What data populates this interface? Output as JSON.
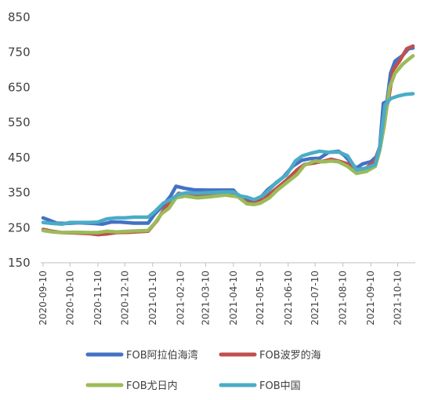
{
  "chart_data": {
    "type": "line",
    "title": "",
    "xlabel": "",
    "ylabel": "",
    "ylim": [
      150,
      850
    ],
    "y_ticks": [
      "850",
      "750",
      "650",
      "550",
      "450",
      "350",
      "250",
      "150"
    ],
    "x_ticks": [
      "2020-09-10",
      "2020-10-10",
      "2020-11-10",
      "2020-12-10",
      "2021-01-10",
      "2021-02-10",
      "2021-03-10",
      "2021-04-10",
      "2021-05-10",
      "2021-06-10",
      "2021-07-10",
      "2021-08-10",
      "2021-09-10",
      "2021-10-10"
    ],
    "x_range": [
      "2020-09-10",
      "2021-10-27"
    ],
    "grid": false,
    "legend_position": "bottom",
    "series": [
      {
        "name": "FOB阿拉伯海湾",
        "color": "#4472C4",
        "points": [
          [
            "2020-09-10",
            278
          ],
          [
            "2020-09-16",
            272
          ],
          [
            "2020-09-25",
            263
          ],
          [
            "2020-10-05",
            262
          ],
          [
            "2020-10-20",
            264
          ],
          [
            "2020-11-05",
            262
          ],
          [
            "2020-11-15",
            260
          ],
          [
            "2020-11-25",
            266
          ],
          [
            "2020-12-05",
            266
          ],
          [
            "2020-12-20",
            263
          ],
          [
            "2021-01-05",
            263
          ],
          [
            "2021-01-12",
            288
          ],
          [
            "2021-01-22",
            315
          ],
          [
            "2021-01-30",
            340
          ],
          [
            "2021-02-05",
            368
          ],
          [
            "2021-02-15",
            362
          ],
          [
            "2021-02-25",
            358
          ],
          [
            "2021-03-10",
            357
          ],
          [
            "2021-03-25",
            357
          ],
          [
            "2021-04-10",
            357
          ],
          [
            "2021-04-16",
            340
          ],
          [
            "2021-04-25",
            330
          ],
          [
            "2021-05-03",
            328
          ],
          [
            "2021-05-10",
            335
          ],
          [
            "2021-05-18",
            358
          ],
          [
            "2021-05-25",
            372
          ],
          [
            "2021-06-05",
            395
          ],
          [
            "2021-06-15",
            425
          ],
          [
            "2021-06-25",
            442
          ],
          [
            "2021-07-05",
            447
          ],
          [
            "2021-07-15",
            448
          ],
          [
            "2021-07-25",
            465
          ],
          [
            "2021-08-05",
            468
          ],
          [
            "2021-08-12",
            455
          ],
          [
            "2021-08-20",
            432
          ],
          [
            "2021-08-25",
            420
          ],
          [
            "2021-09-01",
            432
          ],
          [
            "2021-09-10",
            438
          ],
          [
            "2021-09-16",
            452
          ],
          [
            "2021-09-20",
            480
          ],
          [
            "2021-09-24",
            605
          ],
          [
            "2021-09-28",
            610
          ],
          [
            "2021-10-02",
            690
          ],
          [
            "2021-10-07",
            725
          ],
          [
            "2021-10-15",
            740
          ],
          [
            "2021-10-22",
            760
          ],
          [
            "2021-10-27",
            762
          ]
        ]
      },
      {
        "name": "FOB波罗的海",
        "color": "#C0504D",
        "points": [
          [
            "2020-09-10",
            245
          ],
          [
            "2020-09-20",
            240
          ],
          [
            "2020-10-01",
            236
          ],
          [
            "2020-10-15",
            235
          ],
          [
            "2020-11-01",
            233
          ],
          [
            "2020-11-10",
            230
          ],
          [
            "2020-11-20",
            232
          ],
          [
            "2020-12-01",
            236
          ],
          [
            "2020-12-15",
            237
          ],
          [
            "2021-01-05",
            240
          ],
          [
            "2021-01-15",
            270
          ],
          [
            "2021-01-22",
            300
          ],
          [
            "2021-01-30",
            325
          ],
          [
            "2021-02-08",
            348
          ],
          [
            "2021-02-18",
            343
          ],
          [
            "2021-03-01",
            340
          ],
          [
            "2021-03-15",
            342
          ],
          [
            "2021-04-01",
            345
          ],
          [
            "2021-04-15",
            340
          ],
          [
            "2021-04-25",
            322
          ],
          [
            "2021-05-03",
            320
          ],
          [
            "2021-05-10",
            330
          ],
          [
            "2021-05-20",
            345
          ],
          [
            "2021-05-28",
            362
          ],
          [
            "2021-06-08",
            385
          ],
          [
            "2021-06-20",
            415
          ],
          [
            "2021-06-28",
            430
          ],
          [
            "2021-07-10",
            435
          ],
          [
            "2021-07-20",
            440
          ],
          [
            "2021-07-28",
            445
          ],
          [
            "2021-08-05",
            440
          ],
          [
            "2021-08-15",
            432
          ],
          [
            "2021-08-25",
            415
          ],
          [
            "2021-09-05",
            420
          ],
          [
            "2021-09-15",
            440
          ],
          [
            "2021-09-20",
            480
          ],
          [
            "2021-09-25",
            560
          ],
          [
            "2021-09-30",
            620
          ],
          [
            "2021-10-05",
            700
          ],
          [
            "2021-10-12",
            725
          ],
          [
            "2021-10-20",
            760
          ],
          [
            "2021-10-27",
            768
          ]
        ]
      },
      {
        "name": "FOB尤日内",
        "color": "#9BBB59",
        "points": [
          [
            "2020-09-10",
            242
          ],
          [
            "2020-09-20",
            238
          ],
          [
            "2020-10-01",
            236
          ],
          [
            "2020-10-15",
            237
          ],
          [
            "2020-11-01",
            236
          ],
          [
            "2020-11-10",
            236
          ],
          [
            "2020-11-20",
            240
          ],
          [
            "2020-12-01",
            238
          ],
          [
            "2020-12-15",
            240
          ],
          [
            "2021-01-05",
            242
          ],
          [
            "2021-01-12",
            262
          ],
          [
            "2021-01-20",
            290
          ],
          [
            "2021-01-28",
            305
          ],
          [
            "2021-02-05",
            335
          ],
          [
            "2021-02-15",
            340
          ],
          [
            "2021-03-01",
            335
          ],
          [
            "2021-03-15",
            338
          ],
          [
            "2021-04-01",
            343
          ],
          [
            "2021-04-15",
            338
          ],
          [
            "2021-04-25",
            318
          ],
          [
            "2021-05-03",
            316
          ],
          [
            "2021-05-10",
            320
          ],
          [
            "2021-05-20",
            335
          ],
          [
            "2021-05-28",
            355
          ],
          [
            "2021-06-08",
            378
          ],
          [
            "2021-06-20",
            402
          ],
          [
            "2021-06-28",
            428
          ],
          [
            "2021-07-10",
            440
          ],
          [
            "2021-07-20",
            438
          ],
          [
            "2021-07-28",
            440
          ],
          [
            "2021-08-05",
            438
          ],
          [
            "2021-08-15",
            425
          ],
          [
            "2021-08-25",
            405
          ],
          [
            "2021-09-05",
            410
          ],
          [
            "2021-09-15",
            425
          ],
          [
            "2021-09-20",
            470
          ],
          [
            "2021-09-25",
            540
          ],
          [
            "2021-10-01",
            650
          ],
          [
            "2021-10-07",
            690
          ],
          [
            "2021-10-15",
            715
          ],
          [
            "2021-10-22",
            730
          ],
          [
            "2021-10-27",
            740
          ]
        ]
      },
      {
        "name": "FOB中国",
        "color": "#4BACC6",
        "points": [
          [
            "2020-09-10",
            265
          ],
          [
            "2020-09-20",
            262
          ],
          [
            "2020-10-01",
            260
          ],
          [
            "2020-10-10",
            265
          ],
          [
            "2020-10-20",
            265
          ],
          [
            "2020-11-01",
            265
          ],
          [
            "2020-11-10",
            266
          ],
          [
            "2020-11-20",
            275
          ],
          [
            "2020-12-01",
            278
          ],
          [
            "2020-12-10",
            278
          ],
          [
            "2020-12-20",
            280
          ],
          [
            "2021-01-05",
            280
          ],
          [
            "2021-01-12",
            295
          ],
          [
            "2021-01-22",
            320
          ],
          [
            "2021-01-30",
            330
          ],
          [
            "2021-02-08",
            345
          ],
          [
            "2021-02-18",
            350
          ],
          [
            "2021-03-01",
            348
          ],
          [
            "2021-03-15",
            350
          ],
          [
            "2021-04-01",
            352
          ],
          [
            "2021-04-10",
            352
          ],
          [
            "2021-04-18",
            340
          ],
          [
            "2021-04-25",
            337
          ],
          [
            "2021-05-03",
            330
          ],
          [
            "2021-05-12",
            340
          ],
          [
            "2021-05-20",
            358
          ],
          [
            "2021-05-28",
            380
          ],
          [
            "2021-06-08",
            400
          ],
          [
            "2021-06-18",
            440
          ],
          [
            "2021-06-26",
            455
          ],
          [
            "2021-07-05",
            462
          ],
          [
            "2021-07-15",
            468
          ],
          [
            "2021-07-25",
            465
          ],
          [
            "2021-08-05",
            466
          ],
          [
            "2021-08-15",
            455
          ],
          [
            "2021-08-25",
            415
          ],
          [
            "2021-09-05",
            420
          ],
          [
            "2021-09-15",
            430
          ],
          [
            "2021-09-20",
            480
          ],
          [
            "2021-09-26",
            600
          ],
          [
            "2021-10-02",
            618
          ],
          [
            "2021-10-10",
            625
          ],
          [
            "2021-10-18",
            630
          ],
          [
            "2021-10-27",
            632
          ]
        ]
      }
    ]
  }
}
